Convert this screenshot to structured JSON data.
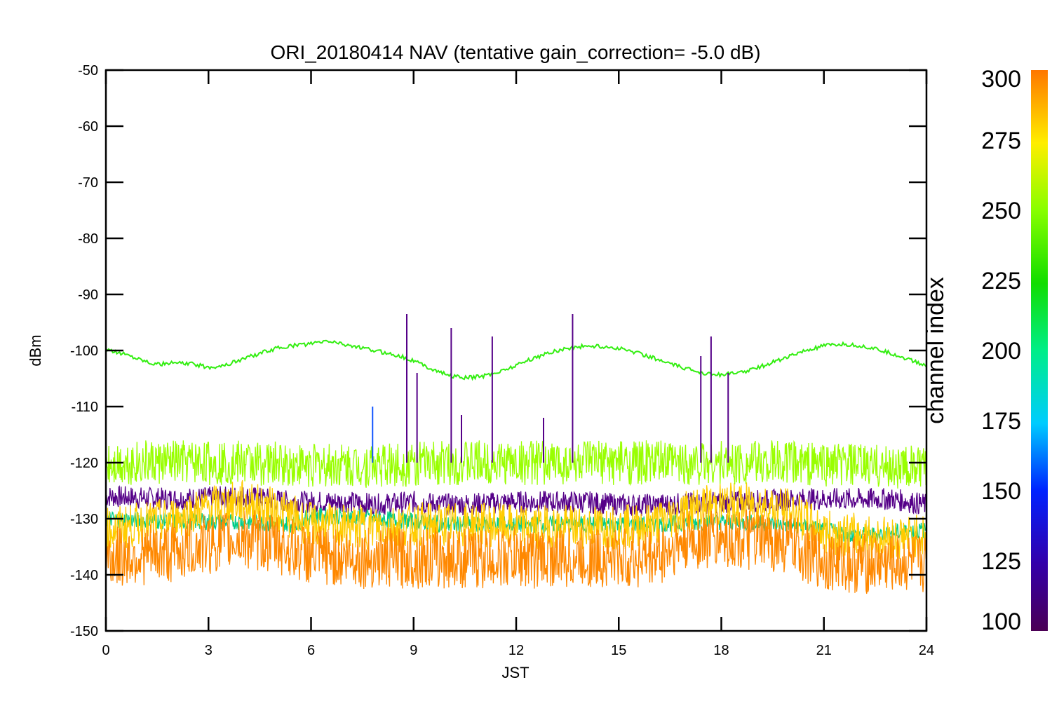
{
  "chart_data": {
    "type": "line",
    "title": "ORI_20180414 NAV (tentative gain_correction= -5.0 dB)",
    "xlabel": "JST",
    "ylabel": "dBm",
    "xlim": [
      0,
      24
    ],
    "ylim": [
      -150,
      -50
    ],
    "x_ticks": [
      0,
      3,
      6,
      9,
      12,
      15,
      18,
      21,
      24
    ],
    "y_ticks": [
      -50,
      -60,
      -70,
      -80,
      -90,
      -100,
      -110,
      -120,
      -130,
      -140,
      -150
    ],
    "colorbar": {
      "label": "channel index",
      "range": [
        100,
        300
      ],
      "ticks": [
        300,
        275,
        250,
        225,
        200,
        175,
        150,
        125,
        100
      ]
    },
    "series": [
      {
        "color": "#33ee11",
        "x": [
          0,
          0.5,
          1,
          1.5,
          2,
          2.5,
          3,
          3.5,
          4,
          4.5,
          5,
          5.5,
          6,
          6.5,
          7,
          7.5,
          8,
          8.5,
          9,
          9.5,
          10,
          10.5,
          11,
          11.5,
          12,
          12.5,
          13,
          13.5,
          14,
          14.5,
          15,
          15.5,
          16,
          16.5,
          17,
          17.5,
          18,
          18.5,
          19,
          19.5,
          20,
          20.5,
          21,
          21.5,
          22,
          22.5,
          23,
          23.5,
          24
        ],
        "y": [
          -100,
          -100.5,
          -101.5,
          -102.5,
          -102.2,
          -102.4,
          -103,
          -102.6,
          -101.5,
          -100.5,
          -99.6,
          -99.1,
          -98.8,
          -98.3,
          -98.9,
          -99.6,
          -100.2,
          -100.8,
          -101.8,
          -103.2,
          -104.4,
          -104.9,
          -104.6,
          -103.8,
          -102.6,
          -101.4,
          -100.3,
          -99.6,
          -99.2,
          -99.3,
          -99.6,
          -100.3,
          -101.3,
          -102.4,
          -103.3,
          -104,
          -104.3,
          -104,
          -103.2,
          -102.1,
          -101,
          -100,
          -99.2,
          -98.9,
          -99.1,
          -99.7,
          -100.6,
          -101.6,
          -102.8
        ]
      },
      {
        "color": "#99ff00",
        "x": [
          0,
          2,
          4,
          6,
          8,
          10,
          12,
          14,
          16,
          18,
          20,
          22,
          24
        ],
        "y": [
          -120,
          -120,
          -120,
          -120.5,
          -120.5,
          -120,
          -120,
          -120,
          -120,
          -120,
          -120,
          -120.5,
          -121
        ]
      },
      {
        "color": "#ffcc00",
        "x": [
          0,
          1,
          2,
          3,
          4,
          5,
          6,
          7,
          8,
          9,
          10,
          11,
          12,
          13,
          14,
          15,
          16,
          17,
          18,
          19,
          20,
          21,
          22,
          23,
          24
        ],
        "y": [
          -132,
          -131,
          -130,
          -128,
          -127,
          -128.5,
          -131,
          -131.5,
          -131.5,
          -131,
          -131,
          -131,
          -131.5,
          -131.5,
          -131.5,
          -131.5,
          -131,
          -128.5,
          -127.5,
          -127.5,
          -128.5,
          -132.5,
          -133,
          -133.5,
          -133
        ]
      },
      {
        "color": "#ff8800",
        "x": [
          0,
          1,
          2,
          3,
          4,
          5,
          6,
          7,
          8,
          9,
          10,
          11,
          12,
          13,
          14,
          15,
          16,
          17,
          18,
          19,
          20,
          21,
          22,
          23,
          24
        ],
        "y": [
          -137,
          -136.5,
          -136,
          -134.5,
          -133.5,
          -134.5,
          -136.5,
          -137,
          -137,
          -137,
          -137,
          -137,
          -137,
          -137,
          -137,
          -137,
          -137,
          -134,
          -133.5,
          -134,
          -134.5,
          -137.5,
          -138,
          -138,
          -138
        ]
      },
      {
        "color": "#550088",
        "x": [
          0,
          2,
          4,
          5.5,
          7,
          8,
          9,
          10,
          12,
          14,
          15,
          16,
          20.5,
          22,
          23,
          24
        ],
        "y": [
          -126,
          -126.5,
          -126,
          -127,
          -127,
          -127.5,
          -127,
          -127.5,
          -127,
          -127,
          -127.5,
          -127.5,
          -126.5,
          -126.5,
          -126.5,
          -127.5
        ]
      },
      {
        "color": "#00cc88",
        "x": [
          0,
          2,
          4,
          5.5,
          6,
          7,
          8,
          9,
          10,
          12,
          14,
          16,
          18,
          20,
          22,
          23,
          24
        ],
        "y": [
          -130,
          -130.5,
          -130.5,
          -131,
          -129.5,
          -129.5,
          -130,
          -130.5,
          -131,
          -131,
          -131,
          -131,
          -130.5,
          -131,
          -133,
          -132.5,
          -132
        ]
      }
    ],
    "spikes": [
      {
        "x": 8.8,
        "y": -93.5,
        "color": "#550088"
      },
      {
        "x": 9.1,
        "y": -104,
        "color": "#550088"
      },
      {
        "x": 10.1,
        "y": -96,
        "color": "#550088"
      },
      {
        "x": 10.4,
        "y": -111.5,
        "color": "#550088"
      },
      {
        "x": 11.3,
        "y": -97.5,
        "color": "#550088"
      },
      {
        "x": 12.8,
        "y": -112,
        "color": "#550088"
      },
      {
        "x": 13.65,
        "y": -93.5,
        "color": "#550088"
      },
      {
        "x": 17.4,
        "y": -101,
        "color": "#550088"
      },
      {
        "x": 17.7,
        "y": -97.5,
        "color": "#550088"
      },
      {
        "x": 18.2,
        "y": -104,
        "color": "#550088"
      },
      {
        "x": 7.8,
        "y": -110,
        "color": "#1155ff"
      }
    ]
  }
}
